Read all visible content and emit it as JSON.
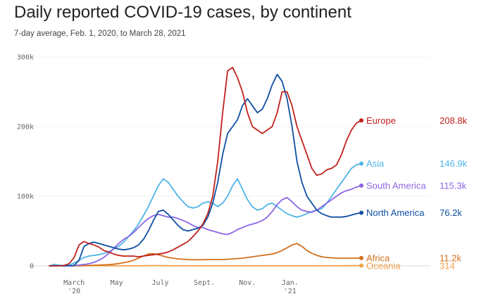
{
  "header": {
    "title": "Daily reported COVID-19 cases, by continent",
    "subtitle": "7-day average, Feb. 1, 2020, to March 28, 2021"
  },
  "chart_data": {
    "type": "line",
    "title": "Daily reported COVID-19 cases, by continent",
    "subtitle": "7-day average, Feb. 1, 2020, to March 28, 2021",
    "xlabel": "",
    "ylabel": "",
    "ylim": [
      0,
      300000
    ],
    "y_ticks": [
      {
        "value": 0,
        "label": "0"
      },
      {
        "value": 100000,
        "label": "100k"
      },
      {
        "value": 200000,
        "label": "200k"
      },
      {
        "value": 300000,
        "label": "300k"
      }
    ],
    "x_ticks": [
      {
        "week": 5,
        "label": "March",
        "sub": "'20"
      },
      {
        "week": 13.6,
        "label": "May",
        "sub": ""
      },
      {
        "week": 22.4,
        "label": "July",
        "sub": ""
      },
      {
        "week": 31.3,
        "label": "Sept.",
        "sub": ""
      },
      {
        "week": 40,
        "label": "Nov.",
        "sub": ""
      },
      {
        "week": 48.6,
        "label": "Jan.",
        "sub": "'21"
      }
    ],
    "grid": true,
    "x_unit": "weeks since Feb. 1, 2020",
    "x": [
      0,
      1,
      2,
      3,
      4,
      5,
      6,
      7,
      8,
      9,
      10,
      11,
      12,
      13,
      14,
      15,
      16,
      17,
      18,
      19,
      20,
      21,
      22,
      23,
      24,
      25,
      26,
      27,
      28,
      29,
      30,
      31,
      32,
      33,
      34,
      35,
      36,
      37,
      38,
      39,
      40,
      41,
      42,
      43,
      44,
      45,
      46,
      47,
      48,
      49,
      50,
      51,
      52,
      53,
      54,
      55,
      56,
      57,
      58,
      59,
      60,
      61,
      62,
      63
    ],
    "series": [
      {
        "name": "Europe",
        "color": "#c0211d",
        "last_label": "208.8k",
        "values": [
          0,
          0,
          0,
          500,
          3000,
          12000,
          30000,
          35000,
          32000,
          30000,
          27000,
          22000,
          20000,
          17000,
          15000,
          14000,
          14000,
          14000,
          13000,
          14000,
          15000,
          16000,
          17000,
          18000,
          20000,
          23000,
          27000,
          31000,
          35000,
          42000,
          50000,
          60000,
          75000,
          100000,
          150000,
          220000,
          280000,
          285000,
          270000,
          250000,
          220000,
          200000,
          195000,
          190000,
          195000,
          200000,
          220000,
          250000,
          250000,
          230000,
          200000,
          180000,
          160000,
          140000,
          130000,
          132000,
          138000,
          140000,
          145000,
          160000,
          180000,
          195000,
          205000,
          208800
        ]
      },
      {
        "name": "Asia",
        "color": "#4fb4e6",
        "last_label": "146.9k",
        "values": [
          0,
          2000,
          1000,
          500,
          1000,
          4000,
          8000,
          12000,
          14000,
          15000,
          16000,
          18000,
          20000,
          24000,
          28000,
          34000,
          42000,
          50000,
          60000,
          72000,
          85000,
          100000,
          115000,
          125000,
          120000,
          110000,
          100000,
          92000,
          85000,
          83000,
          85000,
          90000,
          92000,
          90000,
          85000,
          90000,
          100000,
          115000,
          125000,
          110000,
          95000,
          85000,
          80000,
          82000,
          88000,
          90000,
          85000,
          80000,
          75000,
          72000,
          70000,
          72000,
          75000,
          78000,
          80000,
          82000,
          90000,
          100000,
          110000,
          120000,
          130000,
          140000,
          145000,
          146900
        ]
      },
      {
        "name": "South America",
        "color": "#8c65e3",
        "last_label": "115.3k",
        "values": [
          0,
          0,
          0,
          0,
          0,
          500,
          1000,
          2000,
          3000,
          5000,
          8000,
          12000,
          18000,
          25000,
          32000,
          38000,
          42000,
          48000,
          55000,
          62000,
          68000,
          72000,
          74000,
          72000,
          70000,
          70000,
          68000,
          65000,
          62000,
          58000,
          55000,
          55000,
          52000,
          50000,
          48000,
          46000,
          45000,
          48000,
          52000,
          55000,
          58000,
          60000,
          62000,
          65000,
          70000,
          78000,
          88000,
          95000,
          98000,
          92000,
          85000,
          80000,
          78000,
          77000,
          80000,
          85000,
          90000,
          95000,
          100000,
          105000,
          108000,
          110000,
          113000,
          115300
        ]
      },
      {
        "name": "North America",
        "color": "#0f4fa3",
        "last_label": "76.2k",
        "values": [
          0,
          0,
          0,
          0,
          0,
          500,
          8000,
          28000,
          32000,
          34000,
          32000,
          30000,
          28000,
          26000,
          24000,
          23000,
          24000,
          26000,
          30000,
          38000,
          50000,
          65000,
          78000,
          80000,
          74000,
          66000,
          58000,
          52000,
          50000,
          52000,
          54000,
          58000,
          70000,
          90000,
          120000,
          160000,
          190000,
          200000,
          210000,
          230000,
          240000,
          230000,
          220000,
          225000,
          240000,
          260000,
          275000,
          265000,
          240000,
          200000,
          150000,
          120000,
          100000,
          90000,
          80000,
          75000,
          72000,
          70000,
          70000,
          70000,
          71000,
          73000,
          75000,
          76200
        ]
      },
      {
        "name": "Africa",
        "color": "#d2701e",
        "last_label": "11.2k",
        "values": [
          0,
          0,
          0,
          0,
          0,
          0,
          100,
          300,
          500,
          800,
          1000,
          1300,
          1700,
          2300,
          3200,
          4500,
          6000,
          8000,
          11000,
          14000,
          17000,
          17500,
          16000,
          14000,
          12000,
          11000,
          10000,
          9500,
          9000,
          8800,
          8700,
          8800,
          9000,
          9000,
          9000,
          9000,
          9500,
          10000,
          10500,
          11000,
          12000,
          13000,
          14000,
          15000,
          16000,
          17000,
          19000,
          22000,
          26000,
          30000,
          32000,
          28000,
          22000,
          18000,
          15000,
          13000,
          12000,
          11500,
          11000,
          11000,
          11000,
          11000,
          11100,
          11200
        ]
      },
      {
        "name": "Oceania",
        "color": "#f0a04b",
        "last_label": "314",
        "values": [
          0,
          0,
          0,
          0,
          0,
          0,
          100,
          300,
          350,
          300,
          200,
          100,
          50,
          30,
          20,
          20,
          30,
          50,
          100,
          200,
          400,
          500,
          450,
          350,
          250,
          150,
          100,
          80,
          60,
          50,
          40,
          30,
          30,
          25,
          25,
          25,
          25,
          30,
          30,
          30,
          35,
          40,
          40,
          45,
          50,
          40,
          35,
          30,
          28,
          25,
          25,
          30,
          30,
          35,
          40,
          50,
          60,
          100,
          150,
          200,
          250,
          300,
          310,
          314
        ]
      }
    ]
  }
}
